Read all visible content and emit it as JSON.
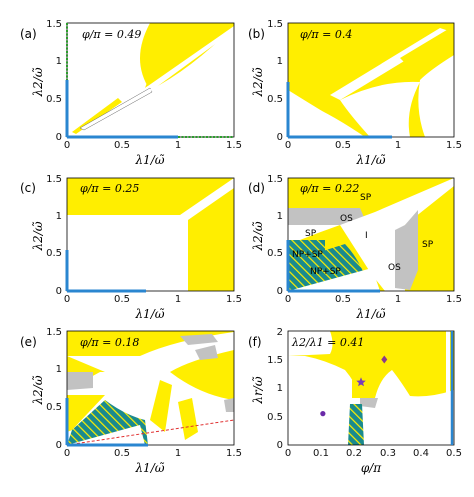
{
  "colors": {
    "unstable_yellow": "#ffee00",
    "gray_region": "#c2c2c2",
    "teal_region": "#1a8a8e",
    "hatch_yellow": "#ffee00",
    "axis_blue": "#2a86d0",
    "axis_green": "#2aa02a",
    "boundary": "#555555",
    "star_marker": "#7a3db8",
    "diamond_marker": "#8a3a8a",
    "dot_marker": "#6a2aa8",
    "red_dashed": "#e03030"
  },
  "chart_data": [
    {
      "type": "heatmap",
      "panel": "(a)",
      "annotation": "φ/π = 0.49",
      "xlabel": "λ1/ω̃",
      "ylabel": "λ2/ω̃",
      "xlim": [
        0,
        1.5
      ],
      "ylim": [
        0,
        1.5
      ],
      "xticks": [
        "0",
        "0.5",
        "1",
        "1.5"
      ],
      "yticks": [
        "0",
        "0.5",
        "1",
        "1.5"
      ],
      "region_labels": []
    },
    {
      "type": "heatmap",
      "panel": "(b)",
      "annotation": "φ/π = 0.4",
      "xlabel": "λ1/ω̃",
      "ylabel": "λ2/ω̃",
      "xlim": [
        0,
        1.5
      ],
      "ylim": [
        0,
        1.5
      ],
      "xticks": [
        "0",
        "0.5",
        "1",
        "1.5"
      ],
      "yticks": [
        "0",
        "0.5",
        "1",
        "1.5"
      ],
      "region_labels": []
    },
    {
      "type": "heatmap",
      "panel": "(c)",
      "annotation": "φ/π = 0.25",
      "xlabel": "λ1/ω̃",
      "ylabel": "λ2/ω̃",
      "xlim": [
        0,
        1.5
      ],
      "ylim": [
        0,
        1.5
      ],
      "xticks": [
        "0",
        "0.5",
        "1",
        "1.5"
      ],
      "yticks": [
        "0",
        "0.5",
        "1",
        "1.5"
      ],
      "region_labels": []
    },
    {
      "type": "heatmap",
      "panel": "(d)",
      "annotation": "φ/π = 0.22",
      "xlabel": "λ1/ω̃",
      "ylabel": "λ2/ω̃",
      "xlim": [
        0,
        1.5
      ],
      "ylim": [
        0,
        1.5
      ],
      "xticks": [
        "0",
        "0.5",
        "1",
        "1.5"
      ],
      "yticks": [
        "0",
        "0.5",
        "1",
        "1.5"
      ],
      "region_labels": [
        "SP",
        "OS",
        "I",
        "SP",
        "NP+SP",
        "NP+SP",
        "OS",
        "SP"
      ]
    },
    {
      "type": "heatmap",
      "panel": "(e)",
      "annotation": "φ/π = 0.18",
      "xlabel": "λ1/ω̃",
      "ylabel": "λ2/ω̃",
      "xlim": [
        0,
        1.5
      ],
      "ylim": [
        0,
        1.5
      ],
      "xticks": [
        "0",
        "0.5",
        "1",
        "1.5"
      ],
      "yticks": [
        "0",
        "0.5",
        "1",
        "1.5"
      ],
      "region_labels": []
    },
    {
      "type": "heatmap",
      "panel": "(f)",
      "annotation": "λ2/λ1 = 0.41",
      "xlabel": "φ/π",
      "ylabel": "λr/ω̃",
      "xlim": [
        0,
        0.5
      ],
      "ylim": [
        0,
        2
      ],
      "xticks": [
        "0",
        "0.1",
        "0.2",
        "0.3",
        "0.4",
        "0.5"
      ],
      "yticks": [
        "0",
        "0.5",
        "1",
        "1.5",
        "2"
      ],
      "region_labels": [],
      "markers": [
        {
          "shape": "star",
          "x": 0.22,
          "y": 1.1
        },
        {
          "shape": "diamond",
          "x": 0.29,
          "y": 1.5
        },
        {
          "shape": "circle",
          "x": 0.105,
          "y": 0.55
        }
      ]
    }
  ]
}
